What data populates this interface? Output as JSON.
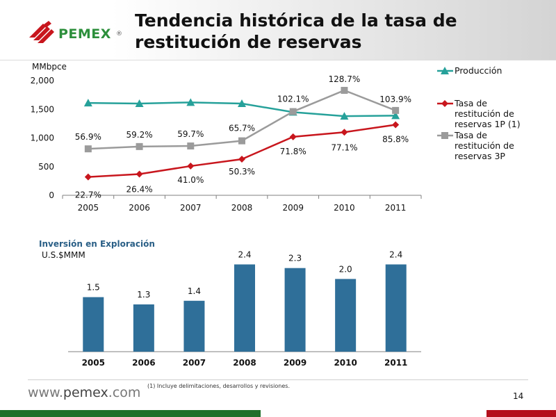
{
  "slide": {
    "title": "Tendencia histórica de la tasa de restitución de reservas",
    "logo_text": "PEMEX",
    "logo_reg": "®",
    "footer_url_prefix": "www.",
    "footer_url_domain": "pemex",
    "footer_url_suffix": ".com",
    "footnote": "(1)    Incluye delimitaciones, desarrollos y revisiones.",
    "page_number": "14"
  },
  "colors": {
    "produccion": "#26a19a",
    "tasa_1p": "#c8161d",
    "tasa_3p": "#9b9b9b",
    "bars": "#2f6f99",
    "section_label": "#2a5f86",
    "logo_green": "#2d8f3c",
    "logo_red": "#c8161d"
  },
  "icons": {
    "logo": "pemex-eagle-logo",
    "produccion_marker": "triangle-marker",
    "tasa_1p_marker": "diamond-marker",
    "tasa_3p_marker": "square-marker"
  },
  "chart_data": [
    {
      "type": "line",
      "title": "",
      "ylabel": "MMbpce",
      "xlabel": "",
      "ylim": [
        0,
        2000
      ],
      "yticks": [
        "0",
        "500",
        "1,000",
        "1,500",
        "2,000"
      ],
      "ytick_values": [
        0,
        500,
        1000,
        1500,
        2000
      ],
      "grid": false,
      "legend_position": "right",
      "categories": [
        "2005",
        "2006",
        "2007",
        "2008",
        "2009",
        "2010",
        "2011"
      ],
      "series": [
        {
          "name": "Producción",
          "key": "produccion",
          "marker": "triangle",
          "values": [
            1610,
            1600,
            1620,
            1600,
            1450,
            1380,
            1390
          ],
          "labels": []
        },
        {
          "name": "Tasa de restitución de reservas 1P (1)",
          "key": "tasa_1p",
          "marker": "diamond",
          "values": [
            320,
            370,
            510,
            630,
            1020,
            1100,
            1230
          ],
          "labels": [
            "22.7%",
            "26.4%",
            "41.0%",
            "50.3%",
            "71.8%",
            "77.1%",
            "85.8%"
          ]
        },
        {
          "name": "Tasa de restitución de reservas 3P",
          "key": "tasa_3p",
          "marker": "square",
          "values": [
            810,
            850,
            860,
            950,
            1460,
            1830,
            1480
          ],
          "labels": [
            "56.9%",
            "59.2%",
            "59.7%",
            "65.7%",
            "102.1%",
            "128.7%",
            "103.9%"
          ]
        }
      ]
    },
    {
      "type": "bar",
      "title": "Inversión en Exploración",
      "ylabel": "U.S.$MMM",
      "xlabel": "",
      "ylim": [
        0,
        2.6
      ],
      "grid": false,
      "categories": [
        "2005",
        "2006",
        "2007",
        "2008",
        "2009",
        "2010",
        "2011"
      ],
      "values": [
        1.5,
        1.3,
        1.4,
        2.4,
        2.3,
        2.0,
        2.4
      ],
      "labels": [
        "1.5",
        "1.3",
        "1.4",
        "2.4",
        "2.3",
        "2.0",
        "2.4"
      ]
    }
  ],
  "legend": [
    {
      "label_lines": [
        "Producción"
      ],
      "key": "produccion"
    },
    {
      "label_lines": [
        "Tasa de",
        "restitución de",
        "reservas 1P (1)"
      ],
      "key": "tasa_1p"
    },
    {
      "label_lines": [
        "Tasa de",
        "restitución de",
        "reservas 3P"
      ],
      "key": "tasa_3p"
    }
  ]
}
